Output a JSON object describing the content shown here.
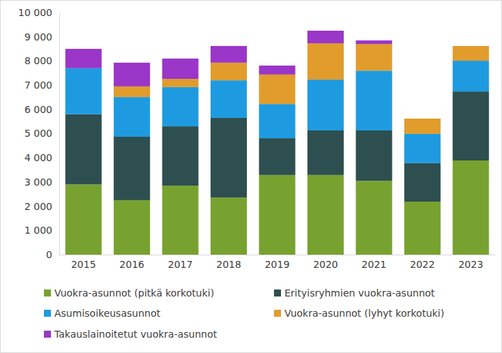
{
  "chart_data": {
    "type": "bar",
    "stacked": true,
    "grid": false,
    "legend": "bottom",
    "categories": [
      "2015",
      "2016",
      "2017",
      "2018",
      "2019",
      "2020",
      "2021",
      "2022",
      "2023"
    ],
    "series": [
      {
        "name": "Vuokra-asunnot (pitkä korkotuki)",
        "color": "#78a22f",
        "values": [
          2900,
          2250,
          2850,
          2360,
          3290,
          3290,
          3050,
          2190,
          3890
        ]
      },
      {
        "name": "Erityisryhmien vuokra-asunnot",
        "color": "#2e4f50",
        "values": [
          2900,
          2620,
          2450,
          3290,
          1520,
          1840,
          2080,
          1590,
          2850
        ]
      },
      {
        "name": "Asumisoikeusasunnot",
        "color": "#1e9be0",
        "values": [
          1900,
          1640,
          1620,
          1550,
          1410,
          2100,
          2470,
          1210,
          1270
        ]
      },
      {
        "name": "Vuokra-asunnot (lyhyt korkotuki)",
        "color": "#e19c2c",
        "values": [
          0,
          440,
          340,
          730,
          1220,
          1500,
          1100,
          630,
          610
        ]
      },
      {
        "name": "Takauslainoitetut vuokra-asunnot",
        "color": "#9a36c8",
        "values": [
          800,
          980,
          840,
          690,
          370,
          520,
          150,
          0,
          0
        ]
      }
    ],
    "ylim": [
      0,
      10000
    ],
    "yticks": [
      0,
      {
        "value": 1000,
        "label": "1 000"
      },
      {
        "value": 2000,
        "label": "2 000"
      },
      {
        "value": 3000,
        "label": "3 000"
      },
      {
        "value": 4000,
        "label": "4 000"
      },
      {
        "value": 5000,
        "label": "5 000"
      },
      {
        "value": 6000,
        "label": "6 000"
      },
      {
        "value": 7000,
        "label": "7 000"
      },
      {
        "value": 8000,
        "label": "8 000"
      },
      {
        "value": 9000,
        "label": "9 000"
      },
      {
        "value": 10000,
        "label": "10 000"
      }
    ]
  }
}
